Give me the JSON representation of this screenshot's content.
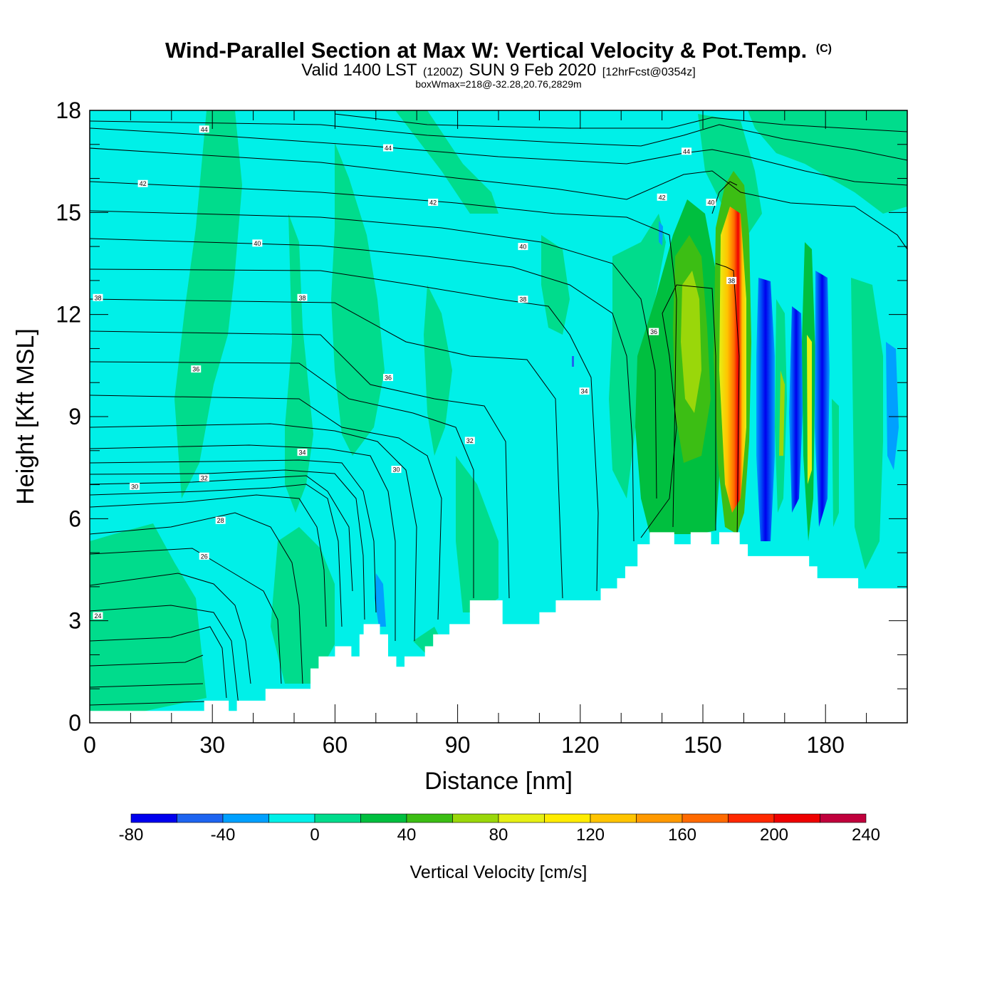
{
  "title": {
    "main": "Wind-Parallel Section at Max W: Vertical Velocity & Pot.Temp.",
    "copyright": "(C)",
    "valid_prefix": "Valid 1400 LST",
    "valid_z": "(1200Z)",
    "valid_date": "SUN 9 Feb 2020",
    "forecast": "[12hrFcst@0354z]",
    "box_info": "boxWmax=218@-32.28,20.76,2829m"
  },
  "chart_data": {
    "type": "heatmap",
    "xlabel": "Distance [nm]",
    "ylabel": "Height [Kft MSL]",
    "xlim": [
      0,
      200
    ],
    "ylim": [
      0,
      18
    ],
    "x_ticks": [
      "0",
      "30",
      "60",
      "90",
      "120",
      "150",
      "180"
    ],
    "x_tick_values": [
      0,
      30,
      60,
      90,
      120,
      150,
      180
    ],
    "y_ticks": [
      "0",
      "3",
      "6",
      "9",
      "12",
      "15",
      "18"
    ],
    "y_tick_values": [
      0,
      3,
      6,
      9,
      12,
      15,
      18
    ],
    "colorbar": {
      "title": "Vertical Velocity [cm/s]",
      "labels": [
        "-80",
        "-40",
        "0",
        "40",
        "80",
        "120",
        "160",
        "200",
        "240"
      ],
      "label_values": [
        -80,
        -40,
        0,
        40,
        80,
        120,
        160,
        200,
        240
      ],
      "min": -80,
      "max": 240,
      "step": 20,
      "colors": [
        "#0000ee",
        "#1e64f0",
        "#00a0ff",
        "#00f0e8",
        "#00dc8c",
        "#00bf3f",
        "#3cbe14",
        "#9ad70a",
        "#e6f014",
        "#ffec00",
        "#ffc400",
        "#ff9900",
        "#ff6a00",
        "#ff2800",
        "#ee0000",
        "#c0003c"
      ]
    },
    "terrain_kft": [
      [
        0,
        0.35
      ],
      [
        28,
        0.35
      ],
      [
        28,
        0.65
      ],
      [
        34,
        0.65
      ],
      [
        34,
        0.35
      ],
      [
        36,
        0.35
      ],
      [
        36,
        0.65
      ],
      [
        43,
        0.65
      ],
      [
        43,
        1
      ],
      [
        54,
        1
      ],
      [
        54,
        1.6
      ],
      [
        56,
        1.6
      ],
      [
        56,
        1.95
      ],
      [
        60,
        1.95
      ],
      [
        60,
        2.25
      ],
      [
        62,
        2.25
      ],
      [
        62,
        2.25
      ],
      [
        64,
        2.25
      ],
      [
        64,
        1.95
      ],
      [
        66,
        1.95
      ],
      [
        66,
        2.6
      ],
      [
        67,
        2.6
      ],
      [
        67,
        2.9
      ],
      [
        71,
        2.9
      ],
      [
        71,
        2.6
      ],
      [
        73,
        2.6
      ],
      [
        73,
        1.95
      ],
      [
        75,
        1.95
      ],
      [
        75,
        1.65
      ],
      [
        77,
        1.65
      ],
      [
        77,
        1.95
      ],
      [
        82,
        1.95
      ],
      [
        82,
        2.25
      ],
      [
        84,
        2.25
      ],
      [
        84,
        2.6
      ],
      [
        88,
        2.6
      ],
      [
        88,
        2.9
      ],
      [
        93,
        2.9
      ],
      [
        93,
        3.6
      ],
      [
        101,
        3.6
      ],
      [
        101,
        2.9
      ],
      [
        110,
        2.9
      ],
      [
        110,
        3.25
      ],
      [
        114,
        3.25
      ],
      [
        114,
        3.6
      ],
      [
        125,
        3.6
      ],
      [
        125,
        3.95
      ],
      [
        129,
        3.95
      ],
      [
        129,
        4.25
      ],
      [
        131,
        4.25
      ],
      [
        131,
        4.6
      ],
      [
        134,
        4.6
      ],
      [
        134,
        5.25
      ],
      [
        137,
        5.25
      ],
      [
        137,
        5.6
      ],
      [
        143,
        5.6
      ],
      [
        143,
        5.25
      ],
      [
        147,
        5.25
      ],
      [
        147,
        5.6
      ],
      [
        152,
        5.6
      ],
      [
        152,
        5.25
      ],
      [
        154,
        5.25
      ],
      [
        154,
        5.6
      ],
      [
        159,
        5.6
      ],
      [
        159,
        5.25
      ],
      [
        161,
        5.25
      ],
      [
        161,
        4.9
      ],
      [
        176,
        4.9
      ],
      [
        176,
        4.6
      ],
      [
        178,
        4.6
      ],
      [
        178,
        4.25
      ],
      [
        188,
        4.25
      ],
      [
        188,
        3.95
      ],
      [
        200,
        3.95
      ]
    ],
    "contour_labels": [
      {
        "text": "44",
        "x": 28,
        "y": 17.45
      },
      {
        "text": "44",
        "x": 73,
        "y": 16.9
      },
      {
        "text": "44",
        "x": 146,
        "y": 16.8
      },
      {
        "text": "42",
        "x": 13,
        "y": 15.85
      },
      {
        "text": "42",
        "x": 84,
        "y": 15.3
      },
      {
        "text": "42",
        "x": 140,
        "y": 15.45
      },
      {
        "text": "40",
        "x": 41,
        "y": 14.1
      },
      {
        "text": "40",
        "x": 106,
        "y": 14
      },
      {
        "text": "40",
        "x": 152,
        "y": 15.3
      },
      {
        "text": "38",
        "x": 2,
        "y": 12.5
      },
      {
        "text": "38",
        "x": 52,
        "y": 12.5
      },
      {
        "text": "38",
        "x": 106,
        "y": 12.45
      },
      {
        "text": "38",
        "x": 157,
        "y": 13.0
      },
      {
        "text": "36",
        "x": 26,
        "y": 10.4
      },
      {
        "text": "36",
        "x": 73,
        "y": 10.15
      },
      {
        "text": "36",
        "x": 138,
        "y": 11.5
      },
      {
        "text": "34",
        "x": 52,
        "y": 7.95
      },
      {
        "text": "34",
        "x": 121,
        "y": 9.75
      },
      {
        "text": "32",
        "x": 28,
        "y": 7.2
      },
      {
        "text": "32",
        "x": 93,
        "y": 8.3
      },
      {
        "text": "30",
        "x": 11,
        "y": 6.95
      },
      {
        "text": "30",
        "x": 75,
        "y": 7.45
      },
      {
        "text": "28",
        "x": 32,
        "y": 5.95
      },
      {
        "text": "26",
        "x": 28,
        "y": 4.9
      },
      {
        "text": "24",
        "x": 2,
        "y": 3.15
      }
    ]
  }
}
